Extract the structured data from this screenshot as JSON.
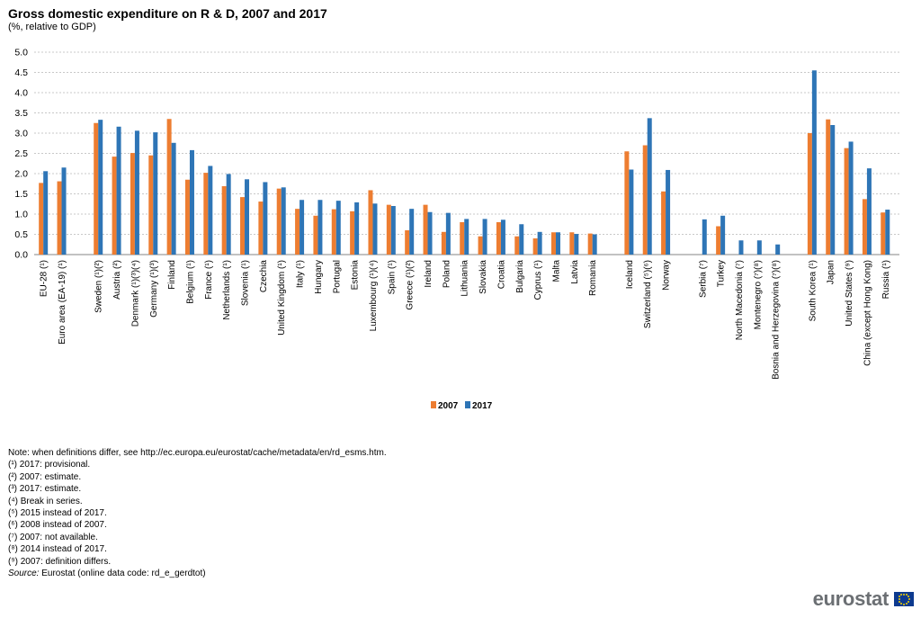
{
  "header": {
    "title": "Gross domestic expenditure on R & D, 2007 and 2017",
    "subtitle": "(%, relative to GDP)"
  },
  "colors": {
    "s2007": "#ed7d31",
    "s2017": "#2e75b6",
    "grid": "#b7b7b7",
    "axis": "#868686"
  },
  "chart_data": {
    "type": "bar",
    "title": "Gross domestic expenditure on R & D, 2007 and 2017",
    "subtitle": "(%, relative to GDP)",
    "ylim": [
      0,
      5.0
    ],
    "yticks": [
      "0.0",
      "0.5",
      "1.0",
      "1.5",
      "2.0",
      "2.5",
      "3.0",
      "3.5",
      "4.0",
      "4.5",
      "5.0"
    ],
    "grid": "horizontal dashed",
    "legend_position": "bottom",
    "groups": [
      [
        "EU-28 (¹)",
        "Euro area (EA-19) (¹)"
      ],
      [
        "Sweden (¹)(²)",
        "Austria (²)",
        "Denmark (¹)(³)(⁴)",
        "Germany (¹)(³)",
        "Finland",
        "Belgium (¹)",
        "France (¹)",
        "Netherlands (¹)",
        "Slovenia (¹)",
        "Czechia",
        "United Kingdom (¹)",
        "Italy (¹)",
        "Hungary",
        "Portugal",
        "Estonia",
        "Luxembourg (¹)(⁴)",
        "Spain (¹)",
        "Greece (¹)(²)",
        "Ireland",
        "Poland",
        "Lithuania",
        "Slovakia",
        "Croatia",
        "Bulgaria",
        "Cyprus (¹)",
        "Malta",
        "Latvia",
        "Romania"
      ],
      [
        "Iceland",
        "Switzerland (⁵)(⁶)",
        "Norway"
      ],
      [
        "Serbia (⁷)",
        "Turkey",
        "North Macedonia (⁷)",
        "Montenegro (⁷)(⁸)",
        "Bosnia and Herzegovina (⁷)(⁸)"
      ],
      [
        "South Korea (¹)",
        "Japan",
        "United States (⁹)",
        "China (except Hong Kong)",
        "Russia (¹)"
      ]
    ],
    "categories": [
      "EU-28 (¹)",
      "Euro area (EA-19) (¹)",
      "Sweden (¹)(²)",
      "Austria (²)",
      "Denmark (¹)(³)(⁴)",
      "Germany (¹)(³)",
      "Finland",
      "Belgium (¹)",
      "France (¹)",
      "Netherlands (¹)",
      "Slovenia (¹)",
      "Czechia",
      "United Kingdom (¹)",
      "Italy (¹)",
      "Hungary",
      "Portugal",
      "Estonia",
      "Luxembourg (¹)(⁴)",
      "Spain (¹)",
      "Greece (¹)(²)",
      "Ireland",
      "Poland",
      "Lithuania",
      "Slovakia",
      "Croatia",
      "Bulgaria",
      "Cyprus (¹)",
      "Malta",
      "Latvia",
      "Romania",
      "Iceland",
      "Switzerland (⁵)(⁶)",
      "Norway",
      "Serbia (⁷)",
      "Turkey",
      "North Macedonia (⁷)",
      "Montenegro (⁷)(⁸)",
      "Bosnia and Herzegovina (⁷)(⁸)",
      "South Korea (¹)",
      "Japan",
      "United States (⁹)",
      "China (except Hong Kong)",
      "Russia (¹)"
    ],
    "series": [
      {
        "name": "2007",
        "values": [
          1.77,
          1.81,
          3.25,
          2.42,
          2.51,
          2.45,
          3.35,
          1.85,
          2.02,
          1.69,
          1.42,
          1.31,
          1.63,
          1.13,
          0.96,
          1.12,
          1.07,
          1.59,
          1.23,
          0.6,
          1.23,
          0.56,
          0.8,
          0.45,
          0.8,
          0.45,
          0.4,
          0.55,
          0.55,
          0.52,
          2.55,
          2.7,
          1.56,
          null,
          0.7,
          null,
          null,
          null,
          3.0,
          3.34,
          2.63,
          1.37,
          1.04
        ]
      },
      {
        "name": "2017",
        "values": [
          2.06,
          2.15,
          3.33,
          3.16,
          3.06,
          3.02,
          2.76,
          2.58,
          2.19,
          1.99,
          1.86,
          1.79,
          1.66,
          1.35,
          1.35,
          1.33,
          1.29,
          1.26,
          1.2,
          1.13,
          1.05,
          1.03,
          0.88,
          0.88,
          0.86,
          0.75,
          0.56,
          0.55,
          0.51,
          0.5,
          2.1,
          3.37,
          2.09,
          0.87,
          0.96,
          0.35,
          0.35,
          0.25,
          4.55,
          3.2,
          2.79,
          2.13,
          1.11
        ]
      }
    ]
  },
  "legend": {
    "label_2007": "2007",
    "label_2017": "2017"
  },
  "notes": [
    "Note: when definitions differ, see http://ec.europa.eu/eurostat/cache/metadata/en/rd_esms.htm.",
    "(¹) 2017: provisional.",
    "(²) 2007: estimate.",
    "(³) 2017: estimate.",
    "(⁴) Break in series.",
    "(⁵) 2015 instead of 2017.",
    "(⁶) 2008 instead of 2007.",
    "(⁷) 2007: not available.",
    "(⁸) 2014 instead of 2017.",
    "(⁹) 2007: definition differs."
  ],
  "source": {
    "label": "Source:",
    "text": " Eurostat (online data code:  rd_e_gerdtot)"
  },
  "logo": {
    "text": "eurostat"
  }
}
